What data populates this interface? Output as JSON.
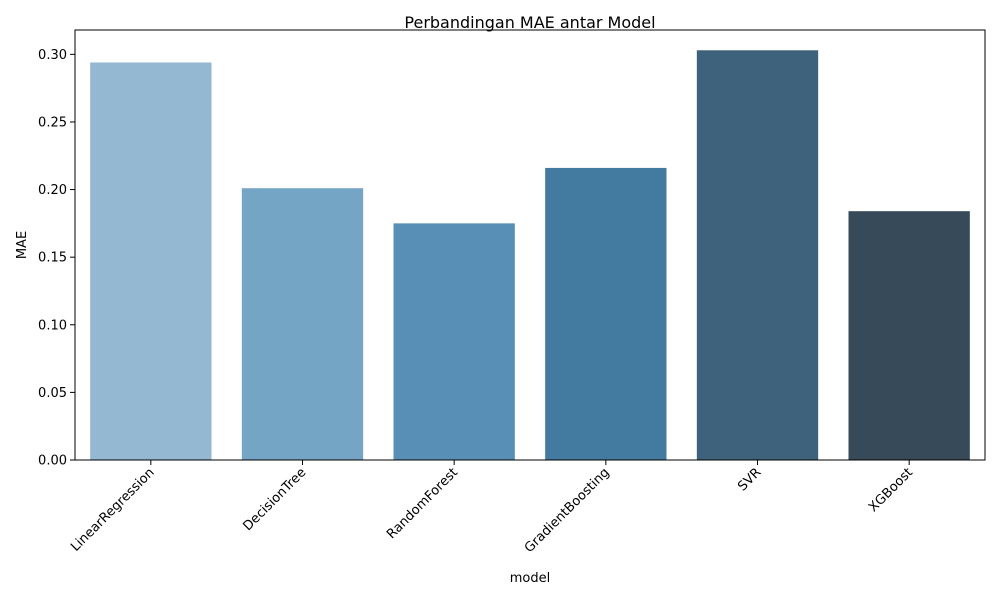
{
  "chart_data": {
    "type": "bar",
    "title": "Perbandingan MAE antar Model",
    "xlabel": "model",
    "ylabel": "MAE",
    "categories": [
      "LinearRegression",
      "DecisionTree",
      "RandomForest",
      "GradientBoosting",
      "SVR",
      "XGBoost"
    ],
    "values": [
      0.294,
      0.201,
      0.175,
      0.216,
      0.303,
      0.184
    ],
    "colors": [
      "#94b8d2",
      "#74a5c4",
      "#578fb6",
      "#437aa0",
      "#3f627c",
      "#374a59"
    ],
    "ylim": [
      0,
      0.318
    ],
    "yticks": [
      "0.00",
      "0.05",
      "0.10",
      "0.15",
      "0.20",
      "0.25",
      "0.30"
    ],
    "grid": false,
    "legend": "none"
  }
}
